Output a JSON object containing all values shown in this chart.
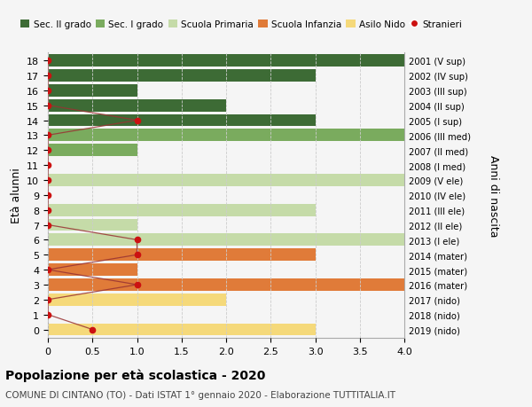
{
  "ages": [
    18,
    17,
    16,
    15,
    14,
    13,
    12,
    11,
    10,
    9,
    8,
    7,
    6,
    5,
    4,
    3,
    2,
    1,
    0
  ],
  "right_labels": [
    "2001 (V sup)",
    "2002 (IV sup)",
    "2003 (III sup)",
    "2004 (II sup)",
    "2005 (I sup)",
    "2006 (III med)",
    "2007 (II med)",
    "2008 (I med)",
    "2009 (V ele)",
    "2010 (IV ele)",
    "2011 (III ele)",
    "2012 (II ele)",
    "2013 (I ele)",
    "2014 (mater)",
    "2015 (mater)",
    "2016 (mater)",
    "2017 (nido)",
    "2018 (nido)",
    "2019 (nido)"
  ],
  "bar_values": [
    4.0,
    3.0,
    1.0,
    2.0,
    3.0,
    4.0,
    1.0,
    0.0,
    4.0,
    0.0,
    3.0,
    1.0,
    4.0,
    3.0,
    1.0,
    4.0,
    2.0,
    0.0,
    3.0
  ],
  "bar_colors": [
    "#3d6b35",
    "#3d6b35",
    "#3d6b35",
    "#3d6b35",
    "#3d6b35",
    "#7aab5e",
    "#7aab5e",
    "#7aab5e",
    "#c5dba8",
    "#c5dba8",
    "#c5dba8",
    "#c5dba8",
    "#c5dba8",
    "#e07b39",
    "#e07b39",
    "#e07b39",
    "#f5d97a",
    "#f5d97a",
    "#f5d97a"
  ],
  "stranieri_x": [
    0,
    0,
    0,
    0,
    1.0,
    0,
    0,
    0,
    0,
    0,
    0,
    0,
    1.0,
    1.0,
    0,
    1.0,
    0,
    0,
    0.5
  ],
  "legend_labels": [
    "Sec. II grado",
    "Sec. I grado",
    "Scuola Primaria",
    "Scuola Infanzia",
    "Asilo Nido",
    "Stranieri"
  ],
  "legend_colors": [
    "#3d6b35",
    "#7aab5e",
    "#c5dba8",
    "#e07b39",
    "#f5d97a",
    "#cc1111"
  ],
  "title": "Popolazione per età scolastica - 2020",
  "subtitle": "COMUNE DI CINTANO (TO) - Dati ISTAT 1° gennaio 2020 - Elaborazione TUTTITALIA.IT",
  "ylabel_left": "Età alunni",
  "ylabel_right": "Anni di nascita",
  "xlim": [
    0,
    4.0
  ],
  "xticks": [
    0,
    0.5,
    1.0,
    1.5,
    2.0,
    2.5,
    3.0,
    3.5,
    4.0
  ],
  "bg_color": "#f5f5f5",
  "plot_bg_color": "#f5f5f5",
  "grid_color": "#cccccc",
  "bar_height": 0.82,
  "stranieri_color": "#cc1111",
  "stranieri_line_color": "#993333"
}
